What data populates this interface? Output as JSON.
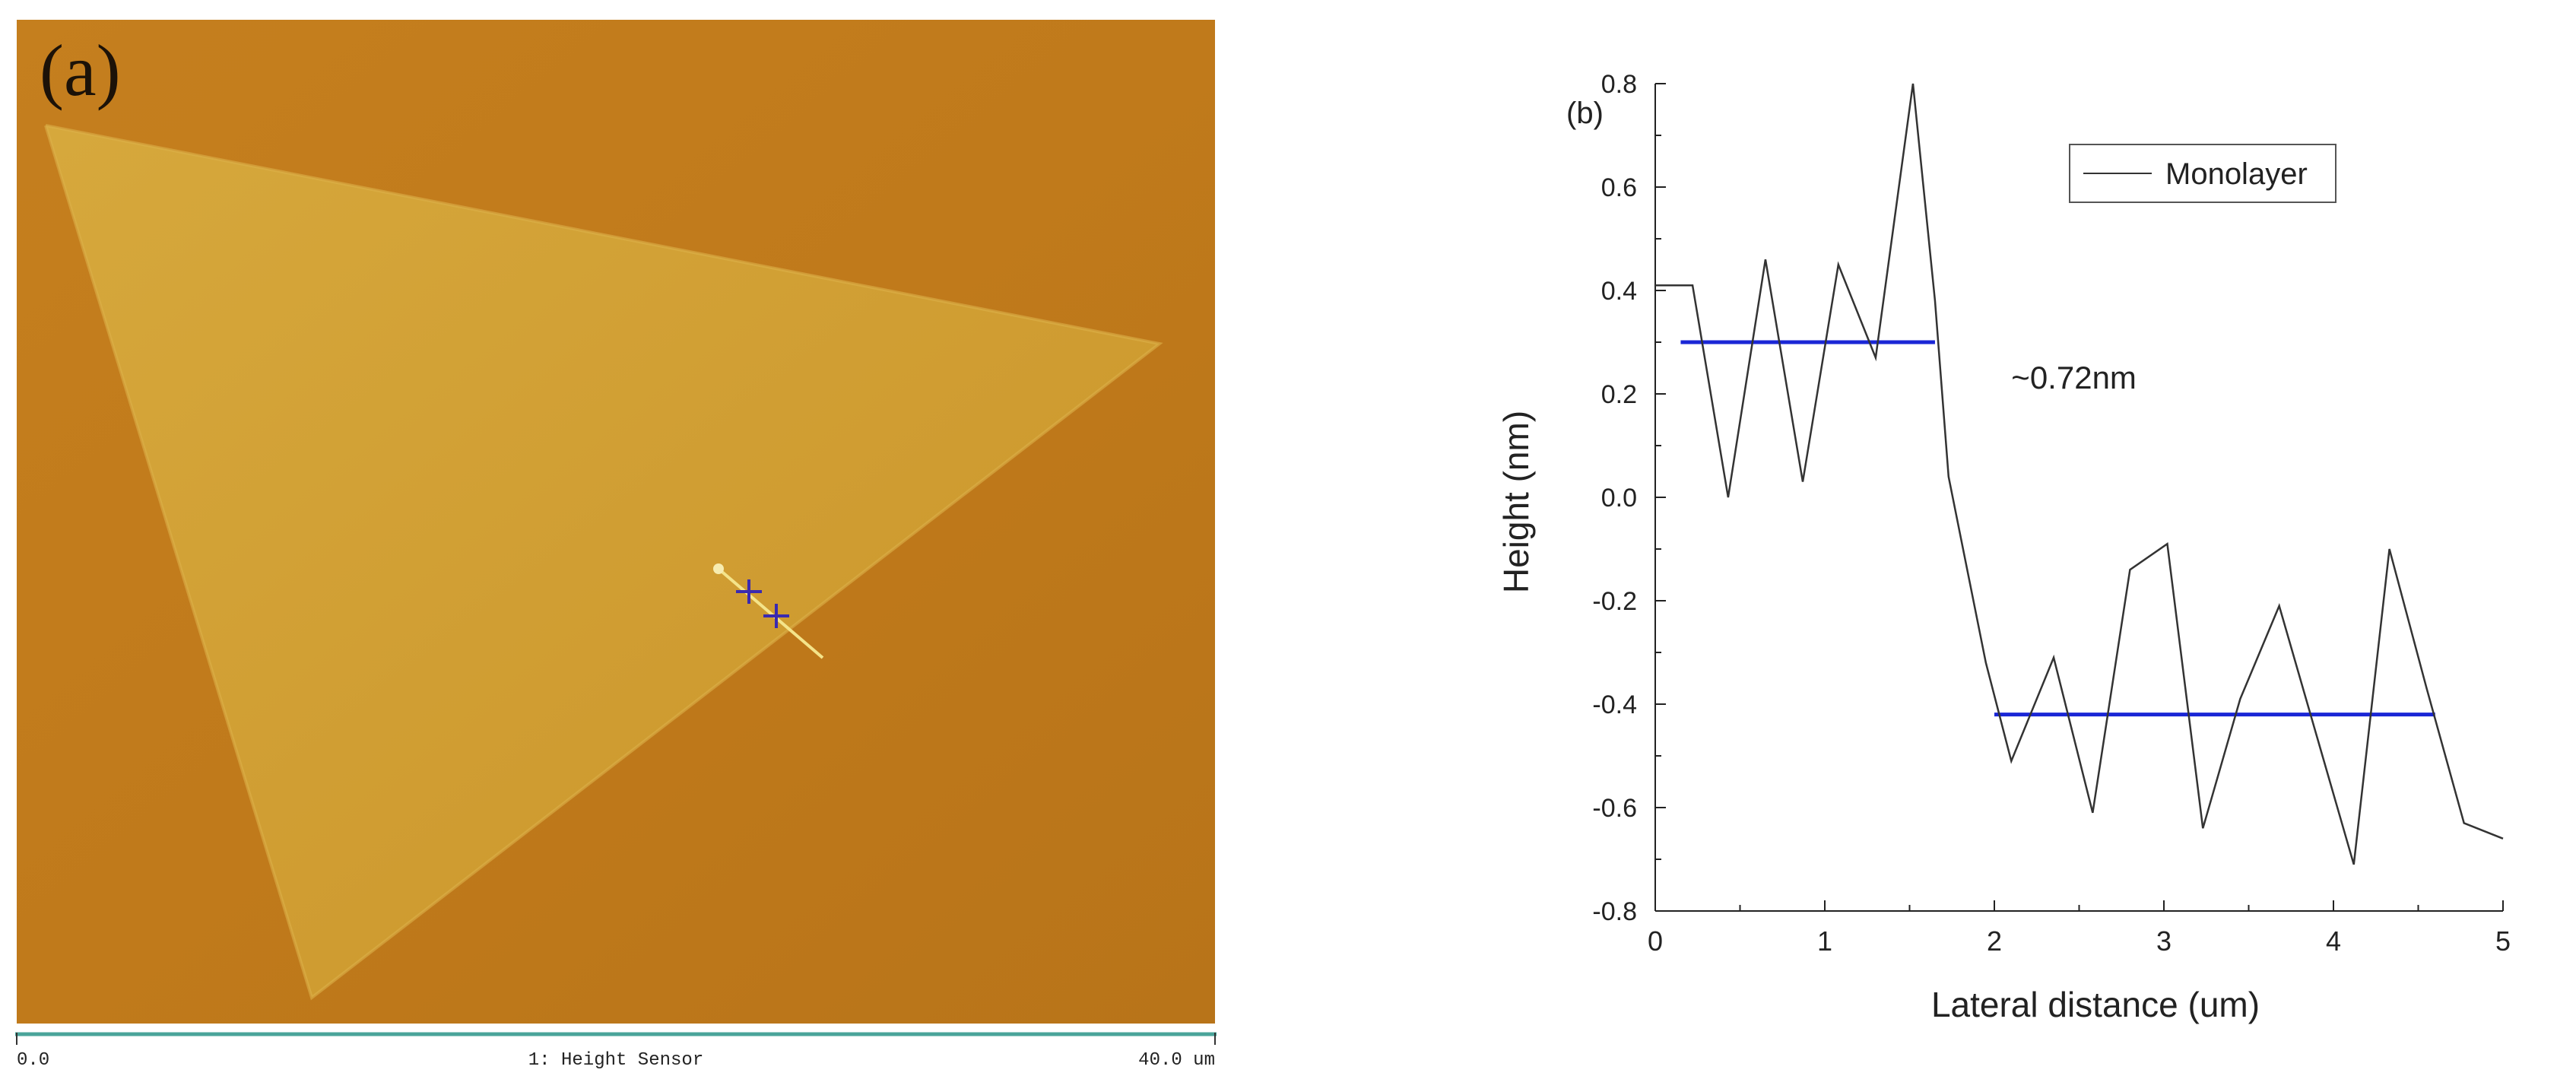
{
  "panel_a": {
    "label": "(a)",
    "scale_start": "0.0",
    "scale_title": "1: Height Sensor",
    "scale_end": "40.0 um",
    "colors": {
      "background": "#c07a1b",
      "flake": "#d2a136",
      "profile_line": "#f4e48a",
      "cursor": "#3a2ab0",
      "scale_bar": "#4aa49a"
    }
  },
  "chart_data": {
    "type": "line",
    "panel_label": "(b)",
    "xlabel": "Lateral distance (um)",
    "ylabel": "Height (nm)",
    "xlim": [
      0,
      5
    ],
    "ylim": [
      -0.8,
      0.8
    ],
    "xticks": [
      "0",
      "1",
      "2",
      "3",
      "4",
      "5"
    ],
    "yticks": [
      "0.8",
      "0.6",
      "0.4",
      "0.2",
      "0.0",
      "-0.2",
      "-0.4",
      "-0.6",
      "-0.8"
    ],
    "grid": false,
    "legend_position": "top-right",
    "series": [
      {
        "name": "Monolayer",
        "color": "#333333",
        "x": [
          0,
          0.22,
          0.43,
          0.65,
          0.87,
          1.08,
          1.3,
          1.52,
          1.65,
          1.73,
          1.95,
          2.1,
          2.35,
          2.58,
          2.8,
          3.02,
          3.23,
          3.45,
          3.68,
          3.9,
          4.12,
          4.33,
          4.55,
          4.77,
          5.0
        ],
        "y": [
          0.41,
          0.41,
          0.0,
          0.46,
          0.03,
          0.45,
          0.27,
          0.8,
          0.38,
          0.04,
          -0.32,
          -0.51,
          -0.31,
          -0.61,
          -0.14,
          -0.09,
          -0.64,
          -0.39,
          -0.21,
          -0.46,
          -0.71,
          -0.1,
          -0.37,
          -0.63,
          -0.66
        ]
      }
    ],
    "reference_lines": [
      {
        "x": [
          0.15,
          1.65
        ],
        "y": 0.3,
        "color": "#1a26d6"
      },
      {
        "x": [
          2.0,
          4.6
        ],
        "y": -0.42,
        "color": "#1a26d6"
      }
    ],
    "annotations": [
      {
        "text": "~0.72nm",
        "x": 2.1,
        "y": 0.21
      }
    ]
  }
}
